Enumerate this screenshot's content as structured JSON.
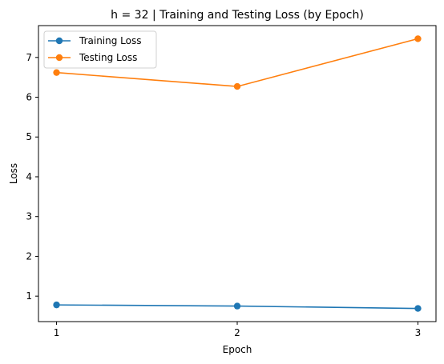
{
  "chart_data": {
    "type": "line",
    "title": "h = 32 | Training and Testing Loss (by Epoch)",
    "xlabel": "Epoch",
    "ylabel": "Loss",
    "x": [
      1,
      2,
      3
    ],
    "xlim": [
      0.9,
      3.1
    ],
    "ylim": [
      0.36,
      7.8
    ],
    "xticks": [
      "1",
      "2",
      "3"
    ],
    "yticks": [
      "1",
      "2",
      "3",
      "4",
      "5",
      "6",
      "7"
    ],
    "grid": false,
    "legend": "top-left",
    "series": [
      {
        "name": "Training Loss",
        "color": "#1f77b4",
        "values": [
          0.78,
          0.75,
          0.69
        ]
      },
      {
        "name": "Testing Loss",
        "color": "#ff7f0e",
        "values": [
          6.62,
          6.27,
          7.47
        ]
      }
    ]
  }
}
